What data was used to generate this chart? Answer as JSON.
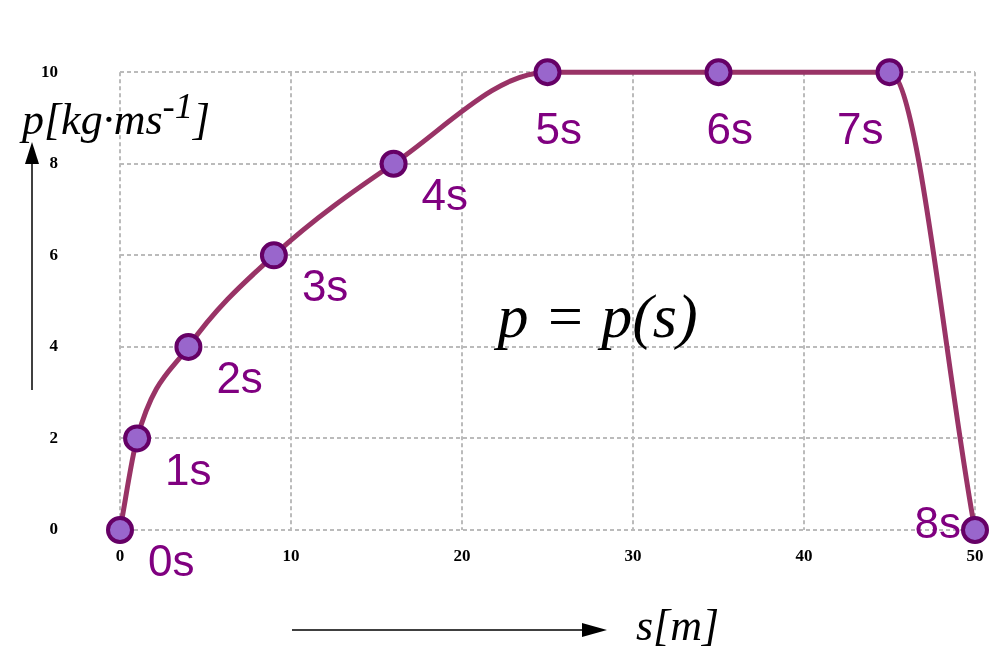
{
  "chart_data": {
    "type": "line",
    "xlabel": "s[m]",
    "ylabel": "p[kg·ms$^{-1}$]",
    "x": [
      0,
      1,
      4,
      9,
      16,
      25,
      35,
      45,
      50
    ],
    "series": [
      {
        "color": "#993366",
        "values": [
          0,
          2,
          4,
          6,
          8,
          10,
          10,
          10,
          0
        ]
      }
    ],
    "xlim": [
      0,
      50
    ],
    "xticks": [
      0,
      10,
      20,
      30,
      40,
      50
    ],
    "ylim": [
      0,
      10
    ],
    "yticks": [
      0,
      2,
      4,
      6,
      8,
      10
    ],
    "grid": true,
    "marker": "circle",
    "line_style": "solid",
    "annotations": [
      {
        "text": "0s",
        "x": 0,
        "y": 0
      },
      {
        "text": "1s",
        "x": 1,
        "y": 2
      },
      {
        "text": "2s",
        "x": 4,
        "y": 4
      },
      {
        "text": "3s",
        "x": 9,
        "y": 6
      },
      {
        "text": "4s",
        "x": 16,
        "y": 8
      },
      {
        "text": "5s",
        "x": 25,
        "y": 10
      },
      {
        "text": "6s",
        "x": 35,
        "y": 10
      },
      {
        "text": "7s",
        "x": 45,
        "y": 10
      },
      {
        "text": "8s",
        "x": 50,
        "y": 0
      },
      "p = p(s)"
    ]
  }
}
